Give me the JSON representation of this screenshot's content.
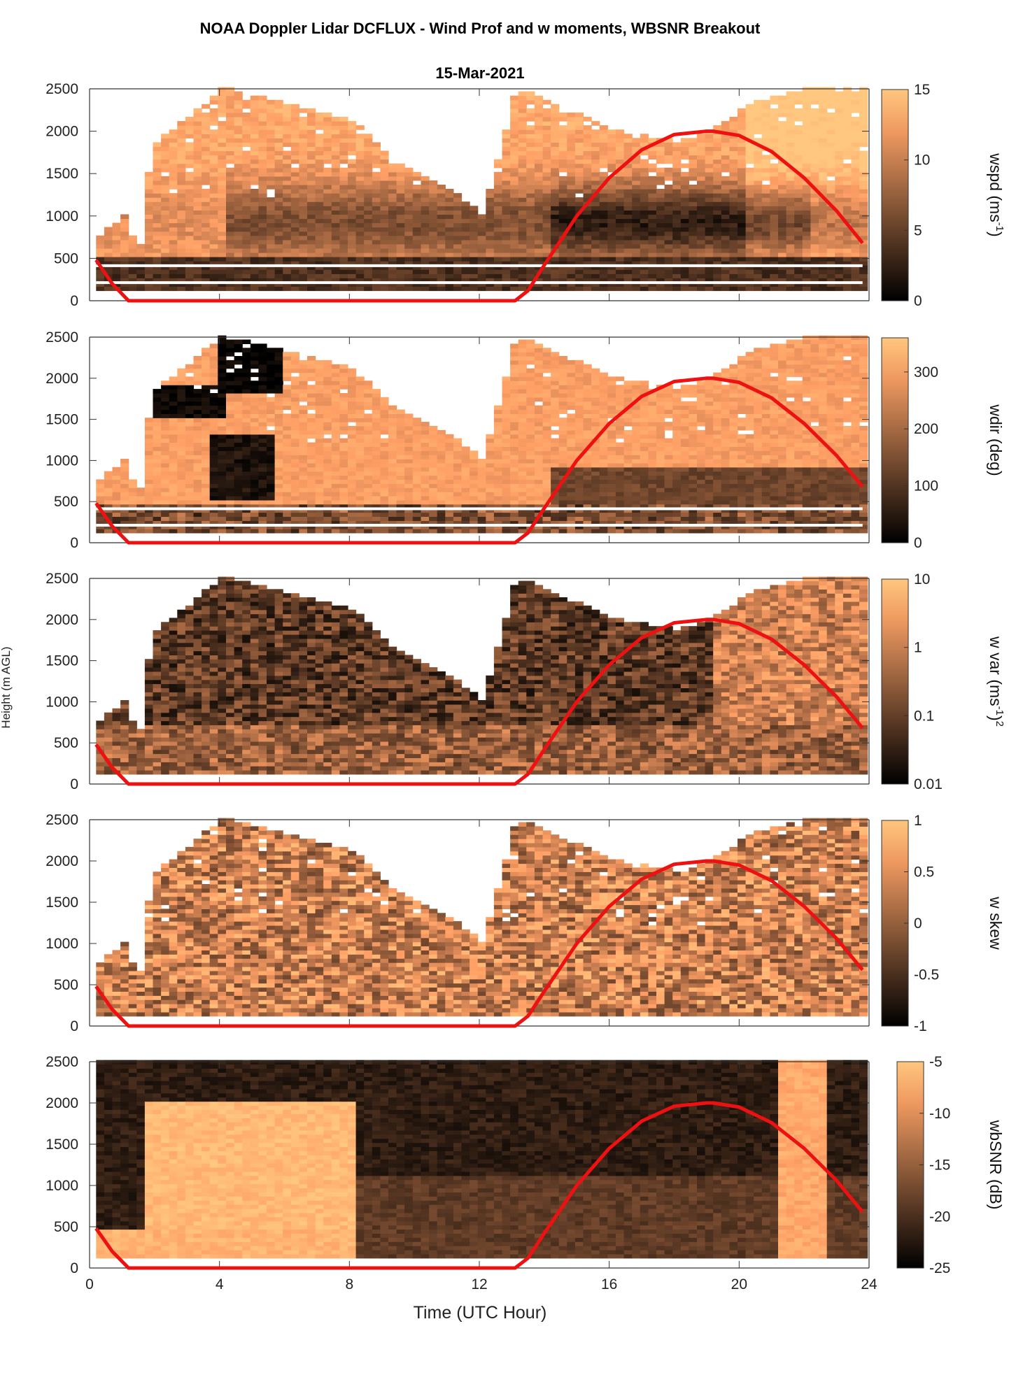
{
  "figure": {
    "title": "NOAA Doppler Lidar DCFLUX - Wind Prof and w moments, WBSNR Breakout",
    "date": "15-Mar-2021",
    "xlabel": "Time (UTC Hour)",
    "ylabel": "Height (m AGL)"
  },
  "chart_data": [
    {
      "type": "heatmap",
      "variable": "wspd",
      "colorbar_label": "wspd (ms",
      "colorbar_label_sup": "-1",
      "colorbar_label_end": ")",
      "colorbar_ticks": [
        "0",
        "5",
        "10",
        "15"
      ],
      "clim": [
        0,
        15
      ],
      "xlim": [
        0,
        24
      ],
      "ylim": [
        0,
        2500
      ],
      "y_ticks": [
        "0",
        "500",
        "1000",
        "1500",
        "2000",
        "2500"
      ],
      "colormap": "copper",
      "overlay_line_color": "#ee1111"
    },
    {
      "type": "heatmap",
      "variable": "wdir",
      "colorbar_label": "wdir (deg)",
      "colorbar_ticks": [
        "0",
        "100",
        "200",
        "300"
      ],
      "clim": [
        0,
        360
      ],
      "xlim": [
        0,
        24
      ],
      "ylim": [
        0,
        2500
      ],
      "y_ticks": [
        "0",
        "500",
        "1000",
        "1500",
        "2000",
        "2500"
      ],
      "colormap": "copper"
    },
    {
      "type": "heatmap",
      "variable": "w var",
      "colorbar_label": "w var (ms",
      "colorbar_label_sup": "-1",
      "colorbar_label_end": ")",
      "colorbar_label_sup2": "2",
      "colorbar_ticks": [
        "0.01",
        "0.1",
        "1",
        "10"
      ],
      "clim": [
        0.01,
        10
      ],
      "color_scale": "log",
      "xlim": [
        0,
        24
      ],
      "ylim": [
        0,
        2500
      ],
      "y_ticks": [
        "0",
        "500",
        "1000",
        "1500",
        "2000",
        "2500"
      ],
      "colormap": "copper"
    },
    {
      "type": "heatmap",
      "variable": "w skew",
      "colorbar_label": "w skew",
      "colorbar_ticks": [
        "-1",
        "-0.5",
        "0",
        "0.5",
        "1"
      ],
      "clim": [
        -1,
        1
      ],
      "xlim": [
        0,
        24
      ],
      "ylim": [
        0,
        2500
      ],
      "y_ticks": [
        "0",
        "500",
        "1000",
        "1500",
        "2000",
        "2500"
      ],
      "colormap": "copper"
    },
    {
      "type": "heatmap",
      "variable": "wbSNR",
      "colorbar_label": "wbSNR (dB)",
      "colorbar_ticks": [
        "-25",
        "-20",
        "-15",
        "-10",
        "-5"
      ],
      "clim": [
        -25,
        -5
      ],
      "xlim": [
        0,
        24
      ],
      "ylim": [
        0,
        2500
      ],
      "y_ticks": [
        "0",
        "500",
        "1000",
        "1500",
        "2000",
        "2500"
      ],
      "x_ticks": [
        "0",
        "4",
        "8",
        "12",
        "16",
        "20",
        "24"
      ],
      "colormap": "copper"
    }
  ],
  "overlay_line": {
    "description_color": "#ee1111",
    "x": [
      0.2,
      0.7,
      1.2,
      2,
      4,
      6,
      8,
      10,
      12,
      13.1,
      13.5,
      14,
      15,
      16,
      17,
      18,
      19,
      19.2,
      20,
      21,
      22,
      23,
      23.8
    ],
    "y": [
      480,
      200,
      0,
      0,
      0,
      0,
      0,
      0,
      0,
      0,
      120,
      420,
      1000,
      1450,
      1780,
      1960,
      2000,
      2000,
      1950,
      1760,
      1450,
      1060,
      680
    ]
  }
}
